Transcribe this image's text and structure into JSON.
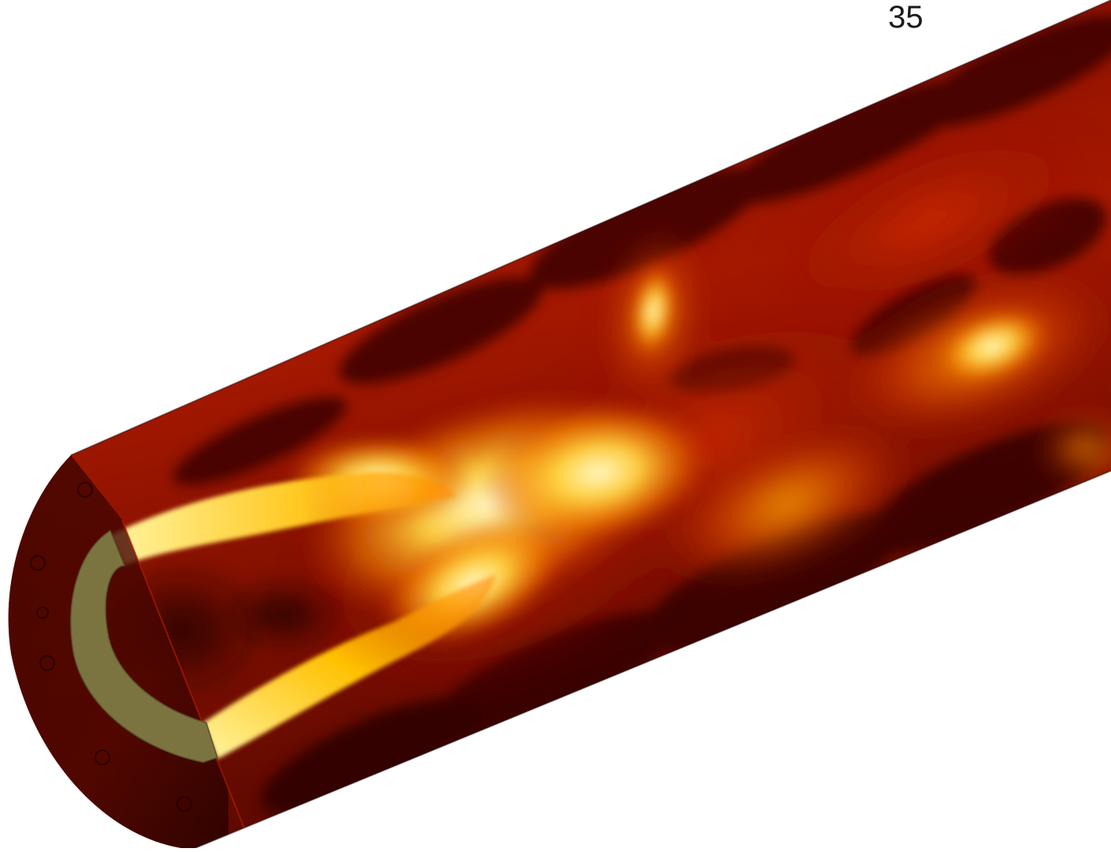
{
  "frame_label": "35",
  "palette": {
    "background": "#ffffff",
    "dark": "#2a0200",
    "mid": "#8a1200",
    "bright": "#e03a00",
    "hot": "#ffb000",
    "core": "#ffe66a",
    "annulus": "#7a7440"
  }
}
